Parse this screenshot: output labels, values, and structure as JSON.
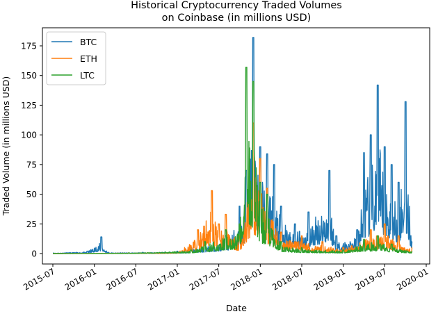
{
  "chart_data": {
    "type": "line",
    "title": "Historical Cryptocurrency Traded Volumes\non Coinbase (in millions USD)",
    "title_lines": [
      "Historical Cryptocurrency Traded Volumes",
      "on Coinbase (in millions USD)"
    ],
    "xlabel": "Date",
    "ylabel": "Traded Volume (in millions USD)",
    "x_ticks": [
      "2015-07",
      "2016-01",
      "2016-07",
      "2017-01",
      "2017-07",
      "2018-01",
      "2018-07",
      "2019-01",
      "2019-07",
      "2020-01"
    ],
    "y_ticks": [
      0,
      25,
      50,
      75,
      100,
      125,
      150,
      175
    ],
    "xlim": [
      "2015-05",
      "2020-02"
    ],
    "ylim": [
      -9,
      190
    ],
    "grid": false,
    "legend_position": "upper left",
    "series": [
      {
        "name": "BTC",
        "color": "#1f77b4",
        "points": [
          [
            "2015-07",
            0.5
          ],
          [
            "2015-12",
            2
          ],
          [
            "2016-02",
            14
          ],
          [
            "2016-03",
            1
          ],
          [
            "2016-08",
            1
          ],
          [
            "2017-01",
            2
          ],
          [
            "2017-03",
            5
          ],
          [
            "2017-05",
            8
          ],
          [
            "2017-08",
            15
          ],
          [
            "2017-10",
            40
          ],
          [
            "2017-11",
            70
          ],
          [
            "2017-12",
            182
          ],
          [
            "2018-01",
            90
          ],
          [
            "2018-02",
            84
          ],
          [
            "2018-03",
            75
          ],
          [
            "2018-04",
            40
          ],
          [
            "2018-06",
            25
          ],
          [
            "2018-08",
            35
          ],
          [
            "2018-11",
            70
          ],
          [
            "2018-12",
            15
          ],
          [
            "2019-03",
            20
          ],
          [
            "2019-04",
            85
          ],
          [
            "2019-05",
            100
          ],
          [
            "2019-06",
            142
          ],
          [
            "2019-07",
            90
          ],
          [
            "2019-08",
            75
          ],
          [
            "2019-09",
            60
          ],
          [
            "2019-10",
            128
          ],
          [
            "2019-11",
            10
          ]
        ]
      },
      {
        "name": "ETH",
        "color": "#ff7f0e",
        "points": [
          [
            "2015-07",
            0
          ],
          [
            "2016-06",
            0.5
          ],
          [
            "2017-01",
            1
          ],
          [
            "2017-04",
            20
          ],
          [
            "2017-06",
            53
          ],
          [
            "2017-07",
            25
          ],
          [
            "2017-08",
            33
          ],
          [
            "2017-10",
            15
          ],
          [
            "2017-12",
            110
          ],
          [
            "2018-01",
            80
          ],
          [
            "2018-02",
            55
          ],
          [
            "2018-04",
            18
          ],
          [
            "2018-07",
            15
          ],
          [
            "2018-10",
            10
          ],
          [
            "2019-01",
            5
          ],
          [
            "2019-05",
            20
          ],
          [
            "2019-07",
            25
          ],
          [
            "2019-09",
            15
          ],
          [
            "2019-11",
            5
          ]
        ]
      },
      {
        "name": "LTC",
        "color": "#2ca02c",
        "points": [
          [
            "2015-07",
            0
          ],
          [
            "2016-06",
            0.5
          ],
          [
            "2017-03",
            3
          ],
          [
            "2017-05",
            10
          ],
          [
            "2017-08",
            20
          ],
          [
            "2017-10",
            25
          ],
          [
            "2017-11",
            157
          ],
          [
            "2017-12",
            145
          ],
          [
            "2018-01",
            60
          ],
          [
            "2018-02",
            50
          ],
          [
            "2018-04",
            10
          ],
          [
            "2018-07",
            5
          ],
          [
            "2019-01",
            3
          ],
          [
            "2019-04",
            12
          ],
          [
            "2019-06",
            15
          ],
          [
            "2019-08",
            8
          ],
          [
            "2019-11",
            2
          ]
        ]
      }
    ]
  }
}
